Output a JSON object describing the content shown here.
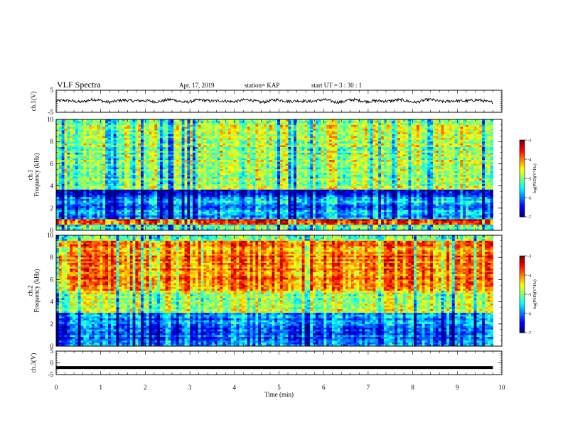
{
  "header": {
    "title": "VLF Spectra",
    "date": "Apr. 17, 2019",
    "station": "station= KAP",
    "start_time": "start  UT =  3  : 30 : 1"
  },
  "chart_data": [
    {
      "type": "line",
      "ylabel": "ch.1(V)",
      "ylim": [
        -5,
        5
      ],
      "y_ticks": [
        "5",
        "-5"
      ],
      "x_range_min": [
        0,
        10
      ],
      "series": [
        {
          "values_description_free": true,
          "x": [
            0,
            9.8
          ],
          "y_range": [
            -1.5,
            1.8
          ]
        }
      ]
    },
    {
      "type": "heatmap",
      "ylabel": "ch.1\nFrequency (kHz)",
      "ylabel_lines": [
        "ch.1",
        "Frequency (kHz)"
      ],
      "ylim": [
        0,
        10
      ],
      "y_ticks": [
        "0",
        "2",
        "4",
        "6",
        "8",
        "10"
      ],
      "x_range_min": [
        0,
        9.8
      ],
      "colorbar": {
        "label": "log(PSD)(V²/Hz)",
        "ticks": [
          "-3",
          "-4",
          "-5",
          "-6",
          "-7"
        ],
        "range": [
          -7,
          -3
        ]
      },
      "dominant_level_by_band": [
        {
          "f_range": [
            0,
            0.5
          ],
          "log_psd": -5.2
        },
        {
          "f_range": [
            0.5,
            1.0
          ],
          "log_psd": -3.6
        },
        {
          "f_range": [
            1.0,
            3.0
          ],
          "log_psd": -5.8
        },
        {
          "f_range": [
            3.0,
            3.6
          ],
          "log_psd": -6.5
        },
        {
          "f_range": [
            3.6,
            10.0
          ],
          "log_psd": -4.8
        }
      ]
    },
    {
      "type": "heatmap",
      "ylabel": "ch.2\nFrequency (kHz)",
      "ylabel_lines": [
        "ch.2",
        "Frequency (kHz)"
      ],
      "ylim": [
        0,
        10
      ],
      "y_ticks": [
        "0",
        "2",
        "4",
        "6",
        "8",
        "10"
      ],
      "x_range_min": [
        0,
        9.8
      ],
      "colorbar": {
        "label": "log(PSD)(V²/Hz)",
        "ticks": [
          "-3",
          "-4",
          "-5",
          "-6",
          "-7"
        ],
        "range": [
          -7,
          -3
        ]
      },
      "dominant_level_by_band": [
        {
          "f_range": [
            0,
            3.0
          ],
          "log_psd": -6.0
        },
        {
          "f_range": [
            3.0,
            5.0
          ],
          "log_psd": -4.8
        },
        {
          "f_range": [
            5.0,
            9.5
          ],
          "log_psd": -4.0
        },
        {
          "f_range": [
            9.5,
            10.0
          ],
          "log_psd": -4.8
        }
      ]
    },
    {
      "type": "line",
      "ylabel": "ch.3(V)",
      "ylim": [
        -5,
        5
      ],
      "y_ticks": [
        "5",
        "0",
        "-5"
      ],
      "xlabel": "Time  (min)",
      "xlim": [
        0,
        10
      ],
      "x_ticks": [
        "0",
        "1",
        "2",
        "3",
        "4",
        "5",
        "6",
        "7",
        "8",
        "9",
        "10"
      ],
      "series": [
        {
          "x": [
            0,
            9.8
          ],
          "y": [
            -2,
            -2
          ]
        }
      ]
    }
  ],
  "colors": {
    "axis": "#000000",
    "trace": "#000000"
  }
}
